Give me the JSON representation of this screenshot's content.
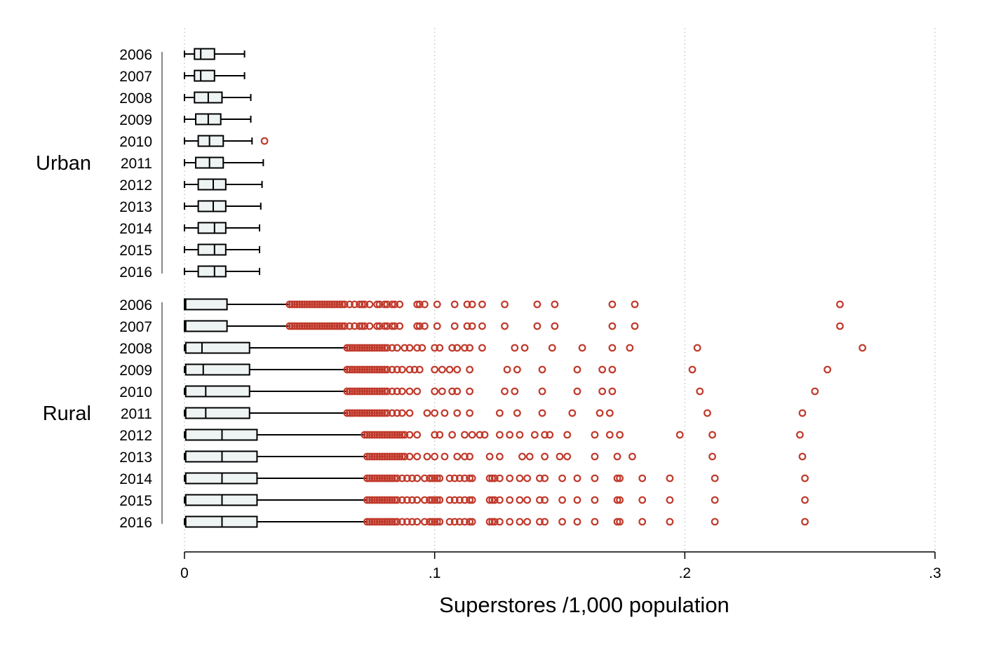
{
  "chart_data": {
    "type": "box",
    "orientation": "horizontal",
    "xlabel": "Superstores /1,000 population",
    "xlim": [
      0,
      0.3
    ],
    "x_ticks": [
      0,
      0.1,
      0.2,
      0.3
    ],
    "x_tick_labels": [
      "0",
      ".1",
      ".2",
      ".3"
    ],
    "grid": "vertical dotted",
    "colors": {
      "box_fill": "#eef3f3",
      "box_stroke": "#000000",
      "outlier": "#c0392b",
      "grid": "#bbbbbb"
    },
    "groups": [
      {
        "name": "Urban",
        "rows": [
          {
            "year": "2006",
            "min": 0.0,
            "q1": 0.004,
            "median": 0.0065,
            "q3": 0.012,
            "max": 0.024,
            "outliers": []
          },
          {
            "year": "2007",
            "min": 0.0,
            "q1": 0.004,
            "median": 0.0065,
            "q3": 0.012,
            "max": 0.024,
            "outliers": []
          },
          {
            "year": "2008",
            "min": 0.0,
            "q1": 0.004,
            "median": 0.0095,
            "q3": 0.015,
            "max": 0.0265,
            "outliers": []
          },
          {
            "year": "2009",
            "min": 0.0,
            "q1": 0.0045,
            "median": 0.0095,
            "q3": 0.0145,
            "max": 0.0265,
            "outliers": []
          },
          {
            "year": "2010",
            "min": 0.0,
            "q1": 0.0055,
            "median": 0.01,
            "q3": 0.0155,
            "max": 0.027,
            "outliers": [
              0.032
            ]
          },
          {
            "year": "2011",
            "min": 0.0,
            "q1": 0.0045,
            "median": 0.01,
            "q3": 0.0155,
            "max": 0.0315,
            "outliers": []
          },
          {
            "year": "2012",
            "min": 0.0,
            "q1": 0.0055,
            "median": 0.0115,
            "q3": 0.0165,
            "max": 0.031,
            "outliers": []
          },
          {
            "year": "2013",
            "min": 0.0,
            "q1": 0.0055,
            "median": 0.0115,
            "q3": 0.0165,
            "max": 0.0305,
            "outliers": []
          },
          {
            "year": "2014",
            "min": 0.0,
            "q1": 0.0055,
            "median": 0.012,
            "q3": 0.0165,
            "max": 0.03,
            "outliers": []
          },
          {
            "year": "2015",
            "min": 0.0,
            "q1": 0.0055,
            "median": 0.012,
            "q3": 0.0165,
            "max": 0.03,
            "outliers": []
          },
          {
            "year": "2016",
            "min": 0.0,
            "q1": 0.0055,
            "median": 0.012,
            "q3": 0.0165,
            "max": 0.03,
            "outliers": []
          }
        ]
      },
      {
        "name": "Rural",
        "rows": [
          {
            "year": "2006",
            "min": 0.0,
            "q1": 0.0,
            "median": 0.0005,
            "q3": 0.017,
            "max": 0.042,
            "outliers": [
              0.042,
              0.043,
              0.044,
              0.045,
              0.046,
              0.047,
              0.048,
              0.049,
              0.05,
              0.051,
              0.052,
              0.053,
              0.054,
              0.055,
              0.056,
              0.057,
              0.058,
              0.059,
              0.06,
              0.061,
              0.062,
              0.063,
              0.064,
              0.066,
              0.068,
              0.07,
              0.071,
              0.072,
              0.074,
              0.077,
              0.078,
              0.08,
              0.081,
              0.083,
              0.084,
              0.086,
              0.093,
              0.094,
              0.096,
              0.101,
              0.108,
              0.113,
              0.115,
              0.119,
              0.128,
              0.141,
              0.148,
              0.171,
              0.18,
              0.262
            ]
          },
          {
            "year": "2007",
            "min": 0.0,
            "q1": 0.0,
            "median": 0.0005,
            "q3": 0.017,
            "max": 0.042,
            "outliers": [
              0.042,
              0.043,
              0.044,
              0.045,
              0.046,
              0.047,
              0.048,
              0.049,
              0.05,
              0.051,
              0.052,
              0.053,
              0.054,
              0.055,
              0.056,
              0.057,
              0.058,
              0.059,
              0.06,
              0.061,
              0.062,
              0.063,
              0.064,
              0.066,
              0.068,
              0.07,
              0.071,
              0.072,
              0.074,
              0.077,
              0.078,
              0.08,
              0.081,
              0.083,
              0.084,
              0.086,
              0.093,
              0.094,
              0.096,
              0.101,
              0.108,
              0.113,
              0.115,
              0.119,
              0.128,
              0.141,
              0.148,
              0.171,
              0.18,
              0.262
            ]
          },
          {
            "year": "2008",
            "min": 0.0,
            "q1": 0.0005,
            "median": 0.007,
            "q3": 0.026,
            "max": 0.065,
            "outliers": [
              0.065,
              0.066,
              0.067,
              0.068,
              0.069,
              0.07,
              0.071,
              0.072,
              0.073,
              0.074,
              0.075,
              0.076,
              0.077,
              0.078,
              0.079,
              0.08,
              0.081,
              0.083,
              0.085,
              0.088,
              0.09,
              0.093,
              0.095,
              0.1,
              0.102,
              0.107,
              0.109,
              0.112,
              0.114,
              0.119,
              0.132,
              0.136,
              0.147,
              0.159,
              0.171,
              0.178,
              0.205,
              0.271
            ]
          },
          {
            "year": "2009",
            "min": 0.0,
            "q1": 0.0005,
            "median": 0.0075,
            "q3": 0.026,
            "max": 0.065,
            "outliers": [
              0.065,
              0.066,
              0.067,
              0.068,
              0.069,
              0.07,
              0.071,
              0.072,
              0.073,
              0.074,
              0.075,
              0.076,
              0.077,
              0.078,
              0.079,
              0.08,
              0.081,
              0.083,
              0.085,
              0.087,
              0.09,
              0.092,
              0.094,
              0.1,
              0.103,
              0.106,
              0.109,
              0.114,
              0.129,
              0.133,
              0.143,
              0.157,
              0.167,
              0.171,
              0.203,
              0.257
            ]
          },
          {
            "year": "2010",
            "min": 0.0,
            "q1": 0.0005,
            "median": 0.0085,
            "q3": 0.026,
            "max": 0.065,
            "outliers": [
              0.065,
              0.066,
              0.067,
              0.068,
              0.069,
              0.07,
              0.071,
              0.072,
              0.073,
              0.074,
              0.075,
              0.076,
              0.077,
              0.078,
              0.079,
              0.08,
              0.081,
              0.083,
              0.085,
              0.087,
              0.09,
              0.093,
              0.1,
              0.103,
              0.107,
              0.109,
              0.114,
              0.128,
              0.132,
              0.143,
              0.157,
              0.167,
              0.171,
              0.206,
              0.252
            ]
          },
          {
            "year": "2011",
            "min": 0.0,
            "q1": 0.0005,
            "median": 0.0085,
            "q3": 0.026,
            "max": 0.065,
            "outliers": [
              0.065,
              0.066,
              0.067,
              0.068,
              0.069,
              0.07,
              0.071,
              0.072,
              0.073,
              0.074,
              0.075,
              0.076,
              0.077,
              0.078,
              0.079,
              0.08,
              0.081,
              0.083,
              0.085,
              0.087,
              0.09,
              0.097,
              0.1,
              0.104,
              0.109,
              0.114,
              0.126,
              0.133,
              0.143,
              0.155,
              0.166,
              0.17,
              0.209,
              0.247
            ]
          },
          {
            "year": "2012",
            "min": 0.0,
            "q1": 0.0005,
            "median": 0.015,
            "q3": 0.029,
            "max": 0.072,
            "outliers": [
              0.072,
              0.073,
              0.074,
              0.075,
              0.076,
              0.077,
              0.078,
              0.079,
              0.08,
              0.081,
              0.082,
              0.083,
              0.084,
              0.085,
              0.086,
              0.087,
              0.088,
              0.09,
              0.093,
              0.1,
              0.102,
              0.107,
              0.112,
              0.115,
              0.118,
              0.12,
              0.126,
              0.13,
              0.134,
              0.14,
              0.144,
              0.146,
              0.153,
              0.164,
              0.17,
              0.174,
              0.198,
              0.211,
              0.246
            ]
          },
          {
            "year": "2013",
            "min": 0.0,
            "q1": 0.0005,
            "median": 0.015,
            "q3": 0.029,
            "max": 0.073,
            "outliers": [
              0.073,
              0.074,
              0.075,
              0.076,
              0.077,
              0.078,
              0.079,
              0.08,
              0.081,
              0.082,
              0.083,
              0.084,
              0.085,
              0.086,
              0.087,
              0.088,
              0.09,
              0.093,
              0.097,
              0.1,
              0.104,
              0.109,
              0.112,
              0.114,
              0.122,
              0.126,
              0.135,
              0.138,
              0.144,
              0.15,
              0.153,
              0.164,
              0.173,
              0.179,
              0.211,
              0.247
            ]
          },
          {
            "year": "2014",
            "min": 0.0,
            "q1": 0.0005,
            "median": 0.015,
            "q3": 0.029,
            "max": 0.073,
            "outliers": [
              0.073,
              0.074,
              0.075,
              0.076,
              0.077,
              0.078,
              0.079,
              0.08,
              0.081,
              0.082,
              0.083,
              0.084,
              0.085,
              0.087,
              0.089,
              0.091,
              0.093,
              0.096,
              0.098,
              0.099,
              0.1,
              0.101,
              0.102,
              0.106,
              0.108,
              0.11,
              0.112,
              0.114,
              0.115,
              0.122,
              0.123,
              0.124,
              0.126,
              0.13,
              0.134,
              0.137,
              0.142,
              0.144,
              0.151,
              0.157,
              0.164,
              0.173,
              0.174,
              0.183,
              0.194,
              0.212,
              0.248
            ]
          },
          {
            "year": "2015",
            "min": 0.0,
            "q1": 0.0005,
            "median": 0.015,
            "q3": 0.029,
            "max": 0.073,
            "outliers": [
              0.073,
              0.074,
              0.075,
              0.076,
              0.077,
              0.078,
              0.079,
              0.08,
              0.081,
              0.082,
              0.083,
              0.084,
              0.085,
              0.087,
              0.089,
              0.091,
              0.093,
              0.096,
              0.098,
              0.099,
              0.1,
              0.101,
              0.102,
              0.106,
              0.108,
              0.11,
              0.112,
              0.114,
              0.115,
              0.122,
              0.123,
              0.124,
              0.126,
              0.13,
              0.134,
              0.137,
              0.142,
              0.144,
              0.151,
              0.157,
              0.164,
              0.173,
              0.174,
              0.183,
              0.194,
              0.212,
              0.248
            ]
          },
          {
            "year": "2016",
            "min": 0.0,
            "q1": 0.0005,
            "median": 0.015,
            "q3": 0.029,
            "max": 0.073,
            "outliers": [
              0.073,
              0.074,
              0.075,
              0.076,
              0.077,
              0.078,
              0.079,
              0.08,
              0.081,
              0.082,
              0.083,
              0.084,
              0.085,
              0.087,
              0.089,
              0.091,
              0.093,
              0.096,
              0.098,
              0.099,
              0.1,
              0.101,
              0.102,
              0.106,
              0.108,
              0.11,
              0.112,
              0.114,
              0.115,
              0.122,
              0.123,
              0.124,
              0.126,
              0.13,
              0.134,
              0.137,
              0.142,
              0.144,
              0.151,
              0.157,
              0.164,
              0.173,
              0.174,
              0.183,
              0.194,
              0.212,
              0.248
            ]
          }
        ]
      }
    ]
  }
}
